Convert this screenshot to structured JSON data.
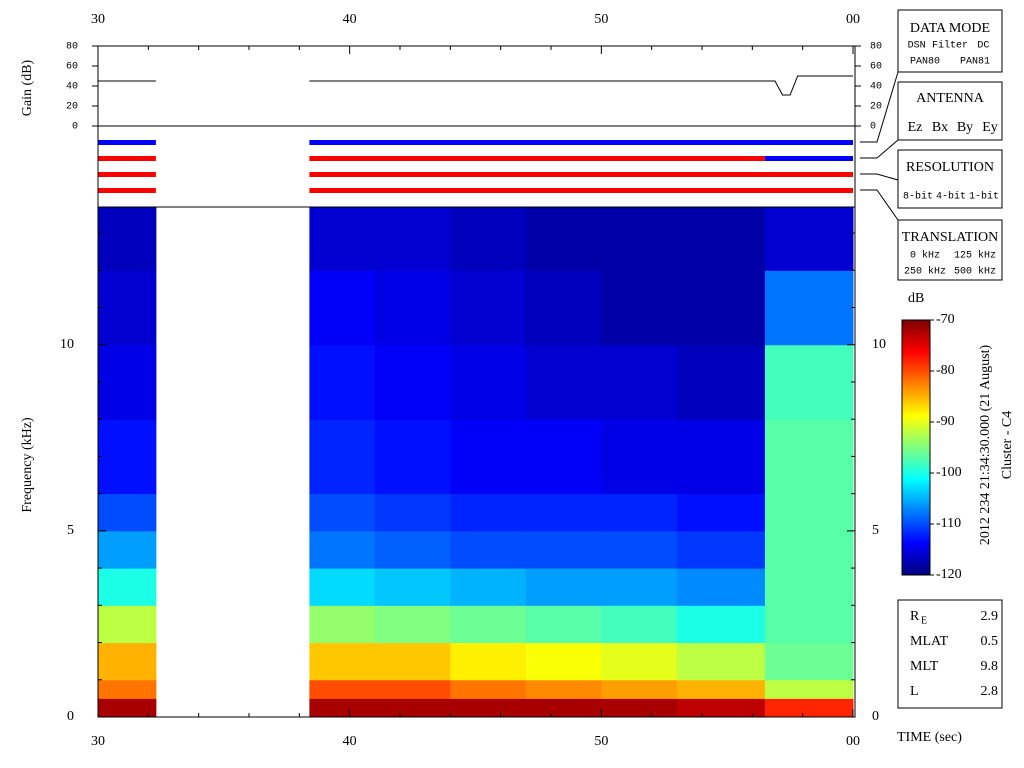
{
  "chart_data": [
    {
      "type": "line",
      "ylabel": "Gain (dB)",
      "xlim": [
        30,
        60
      ],
      "ylim": [
        0,
        80
      ],
      "yticks": [
        0,
        20,
        40,
        60,
        80
      ],
      "xticks": [
        30,
        40,
        50,
        {
          "value": 60,
          "label": "00"
        }
      ],
      "xminorticks": [
        32,
        34,
        36,
        38,
        42,
        44,
        46,
        48,
        52,
        54,
        56,
        58
      ],
      "x": [
        30,
        32.3,
        35,
        38.4,
        56.9,
        57.2,
        57.5,
        57.8,
        60
      ],
      "series": [
        {
          "color": "#000000",
          "values": [
            45,
            45,
            null,
            45,
            45,
            31,
            31,
            50,
            50
          ]
        }
      ]
    },
    {
      "type": "timeline",
      "xlim": [
        30,
        60
      ],
      "series": [
        {
          "segments": [
            {
              "start": 30,
              "end": 32.3,
              "color": "#0000ff"
            },
            {
              "start": 38.4,
              "end": 60,
              "color": "#0000ff"
            }
          ]
        },
        {
          "segments": [
            {
              "start": 30,
              "end": 32.3,
              "color": "#ff0000"
            },
            {
              "start": 38.4,
              "end": 56.5,
              "color": "#ff0000"
            },
            {
              "start": 56.5,
              "end": 60,
              "color": "#0000ff"
            }
          ]
        },
        {
          "segments": [
            {
              "start": 30,
              "end": 32.3,
              "color": "#ff0000"
            },
            {
              "start": 38.4,
              "end": 60,
              "color": "#ff0000"
            }
          ]
        },
        {
          "segments": [
            {
              "start": 30,
              "end": 32.3,
              "color": "#ff0000"
            },
            {
              "start": 38.4,
              "end": 60,
              "color": "#ff0000"
            }
          ]
        }
      ]
    },
    {
      "type": "heatmap",
      "xlabel": "TIME (sec)",
      "ylabel": "Frequency (kHz)",
      "xlim": [
        30,
        60
      ],
      "ylim": [
        0,
        13.7
      ],
      "xticks": [
        30,
        40,
        50,
        {
          "value": 60,
          "label": "00"
        }
      ],
      "xminorticks": [
        32,
        34,
        36,
        38,
        42,
        44,
        46,
        48,
        52,
        54,
        56,
        58
      ],
      "yticks": [
        0,
        5,
        10
      ],
      "yminorticks": [
        1,
        2,
        3,
        4,
        6,
        7,
        8,
        9,
        11,
        12,
        13
      ],
      "x_bins": [
        30,
        32.3,
        38.4,
        41,
        44,
        47,
        50,
        53,
        56.5,
        60
      ],
      "y_bins": [
        0,
        0.5,
        1,
        2,
        3,
        4,
        5,
        6,
        8,
        10,
        12,
        13.7
      ],
      "values": [
        [
          -72,
          null,
          -72,
          -72,
          -72,
          -72,
          -72,
          -73,
          -78
        ],
        [
          -82,
          null,
          -80,
          -80,
          -82,
          -83,
          -84,
          -85,
          -92
        ],
        [
          -85,
          null,
          -86,
          -86,
          -88,
          -89,
          -90,
          -92,
          -96
        ],
        [
          -92,
          null,
          -94,
          -95,
          -96,
          -97,
          -98,
          -100,
          -97
        ],
        [
          -100,
          null,
          -103,
          -104,
          -105,
          -106,
          -106,
          -107,
          -97
        ],
        [
          -106,
          null,
          -108,
          -109,
          -110,
          -110,
          -110,
          -111,
          -97
        ],
        [
          -110,
          null,
          -110,
          -111,
          -112,
          -112,
          -112,
          -113,
          -97
        ],
        [
          -113,
          null,
          -112,
          -113,
          -114,
          -114,
          -115,
          -115,
          -97
        ],
        [
          -115,
          null,
          -113,
          -114,
          -115,
          -116,
          -116,
          -117,
          -98
        ],
        [
          -116,
          null,
          -114,
          -115,
          -116,
          -117,
          -118,
          -118,
          -108
        ],
        [
          -117,
          null,
          -116,
          -116,
          -117,
          -118,
          -118,
          -118,
          -116
        ]
      ],
      "colorbar": {
        "label": "dB",
        "lim": [
          -120,
          -70
        ],
        "ticks": [
          -70,
          -80,
          -90,
          -100,
          -110,
          -120
        ]
      }
    }
  ],
  "side": {
    "data_mode": {
      "title": "DATA MODE",
      "items": [
        {
          "text": "DSN",
          "color": "#ff0000"
        },
        {
          "text": "Filter",
          "color": "#00cc00"
        },
        {
          "text": "DC",
          "color": "#0000ff"
        },
        {
          "text": "PAN80",
          "color": "#000000"
        },
        {
          "text": "PAN81",
          "color": "#00cccc"
        }
      ]
    },
    "antenna": {
      "title": "ANTENNA",
      "items": [
        {
          "text": "Ez",
          "color": "#ff0000"
        },
        {
          "text": "Bx",
          "color": "#00cc00"
        },
        {
          "text": "By",
          "color": "#0000ff"
        },
        {
          "text": "Ey",
          "color": "#000000"
        }
      ]
    },
    "resolution": {
      "title": "RESOLUTION",
      "items": [
        {
          "text": "8-bit",
          "color": "#ff0000"
        },
        {
          "text": "4-bit",
          "color": "#00cc00"
        },
        {
          "text": "1-bit",
          "color": "#0000ff"
        }
      ]
    },
    "translation": {
      "title": "TRANSLATION",
      "items": [
        {
          "text": "0 kHz",
          "color": "#ff0000"
        },
        {
          "text": "125 kHz",
          "color": "#00cc00"
        },
        {
          "text": "250 kHz",
          "color": "#0000ff"
        },
        {
          "text": "500 kHz",
          "color": "#000000"
        }
      ]
    },
    "timestamp": "2012 234 21:34:30.000 (21 August)",
    "spacecraft": "Cluster - C4",
    "position": [
      {
        "label": "R",
        "sub": "E",
        "value": 2.9
      },
      {
        "label": "MLAT",
        "value": 0.5
      },
      {
        "label": "MLT",
        "value": 9.8
      },
      {
        "label": "L",
        "value": 2.8
      }
    ]
  }
}
